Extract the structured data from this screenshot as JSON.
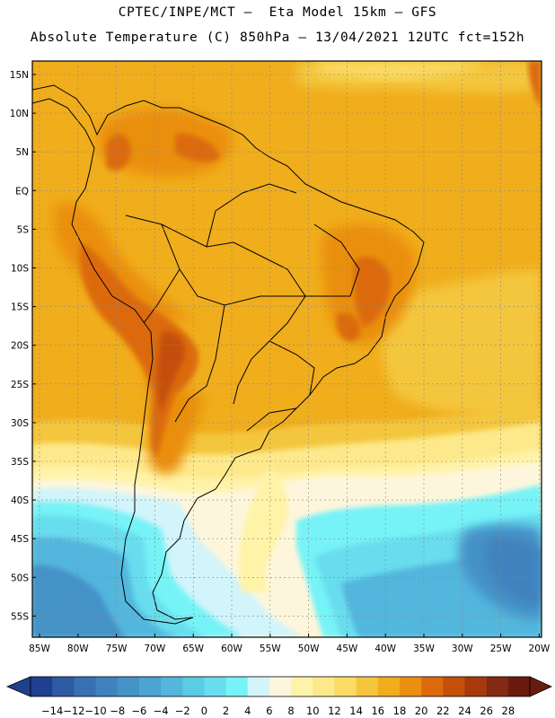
{
  "title_line1": "CPTEC/INPE/MCT –  Eta Model 15km – GFS",
  "title_line2": "Absolute Temperature (C) 850hPa – 13/04/2021 12UTC fct=152h",
  "lat_labels": [
    "15N",
    "10N",
    "5N",
    "EQ",
    "5S",
    "10S",
    "15S",
    "20S",
    "25S",
    "30S",
    "35S",
    "40S",
    "45S",
    "50S",
    "55S"
  ],
  "lon_labels": [
    "85W",
    "80W",
    "75W",
    "70W",
    "65W",
    "60W",
    "55W",
    "50W",
    "45W",
    "40W",
    "35W",
    "30W",
    "25W",
    "20W"
  ],
  "colorbar": {
    "ticks": [
      "-14",
      "-12",
      "-10",
      "-8",
      "-6",
      "-4",
      "-2",
      "0",
      "2",
      "4",
      "6",
      "8",
      "10",
      "12",
      "14",
      "16",
      "18",
      "20",
      "22",
      "24",
      "26",
      "28"
    ],
    "colors": [
      "#1f3f8f",
      "#2e5aa3",
      "#3770b3",
      "#3f82be",
      "#4592c7",
      "#4aa3d2",
      "#52b6dd",
      "#5ccbe6",
      "#67ddee",
      "#76f3f7",
      "#d2f4fb",
      "#fef6dc",
      "#fff3a8",
      "#fde98b",
      "#fbdb63",
      "#f4c63c",
      "#f0ad1c",
      "#ea8f10",
      "#dc6a0a",
      "#c4500a",
      "#a63a0c",
      "#852a12",
      "#6a1b10"
    ]
  },
  "map": {
    "lon_range": [
      -85,
      -20
    ],
    "lat_range": [
      -58,
      17
    ],
    "gridlines": true
  },
  "colors": {
    "warm": "#f0ad1c",
    "hot": "#dc6a0a",
    "cold": "#4592c7"
  }
}
